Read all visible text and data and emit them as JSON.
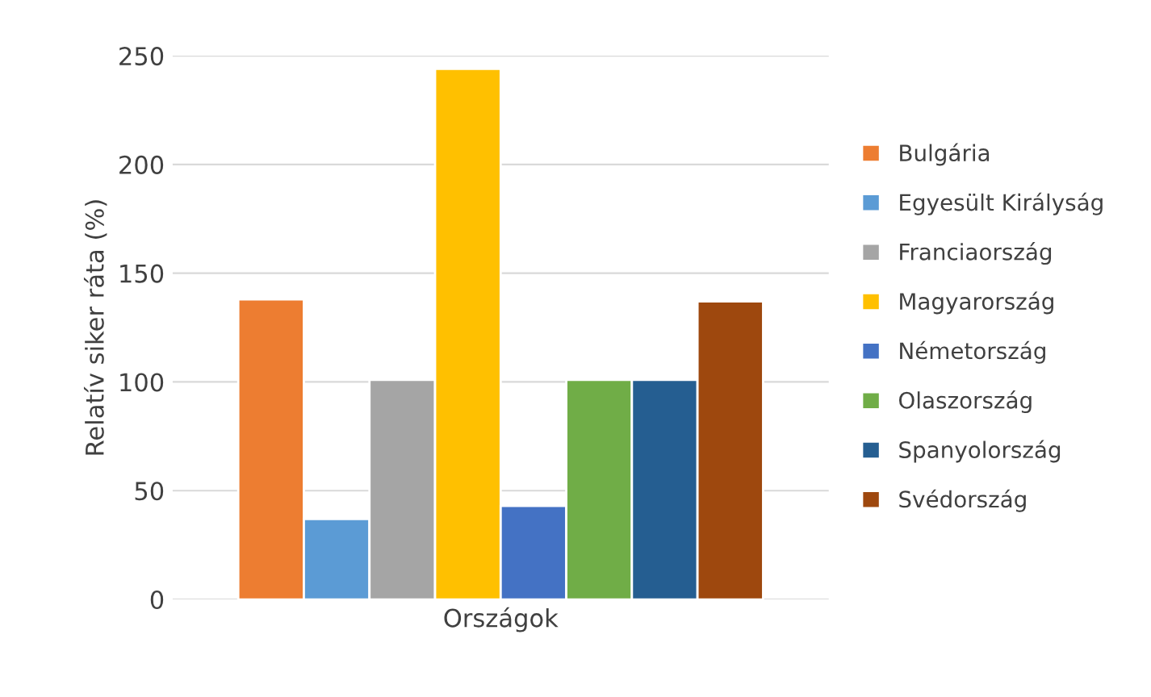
{
  "chart_data": {
    "type": "bar",
    "ylabel": "Relatív siker ráta (%)",
    "categories": [
      "Országok"
    ],
    "series": [
      {
        "name": "Bulgária",
        "color": "#ed7d31",
        "values": [
          138
        ]
      },
      {
        "name": "Egyesült Királyság",
        "color": "#5b9bd5",
        "values": [
          37
        ]
      },
      {
        "name": "Franciaország",
        "color": "#a5a5a5",
        "values": [
          101
        ]
      },
      {
        "name": "Magyarország",
        "color": "#ffc000",
        "values": [
          244
        ]
      },
      {
        "name": "Németország",
        "color": "#4472c4",
        "values": [
          43
        ]
      },
      {
        "name": "Olaszország",
        "color": "#70ad47",
        "values": [
          101
        ]
      },
      {
        "name": "Spanyolország",
        "color": "#255e91",
        "values": [
          101
        ]
      },
      {
        "name": "Svédország",
        "color": "#9e480e",
        "values": [
          137
        ]
      }
    ],
    "ylim": [
      0,
      250
    ],
    "yticks": [
      0,
      50,
      100,
      150,
      200,
      250
    ],
    "grid": "y",
    "legend": "right"
  }
}
